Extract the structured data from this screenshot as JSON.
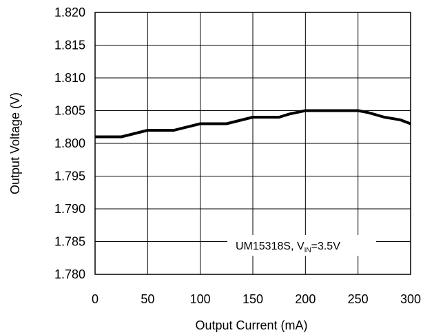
{
  "chart_data": {
    "type": "line",
    "xlabel": "Output Current (mA)",
    "ylabel": "Output Voltage (V)",
    "xlim": [
      0,
      300
    ],
    "ylim": [
      1.78,
      1.82
    ],
    "x_ticks": [
      "0",
      "50",
      "100",
      "150",
      "200",
      "250",
      "300"
    ],
    "y_ticks": [
      "1.780",
      "1.785",
      "1.790",
      "1.795",
      "1.800",
      "1.805",
      "1.810",
      "1.815",
      "1.820"
    ],
    "grid": true,
    "annotation": {
      "main": "UM15318S, V",
      "sub": "IN",
      "tail": "=3.5V"
    },
    "series": [
      {
        "x": [
          0,
          25,
          50,
          75,
          80,
          90,
          100,
          125,
          150,
          175,
          185,
          200,
          225,
          250,
          260,
          275,
          290,
          300
        ],
        "y": [
          1.801,
          1.801,
          1.802,
          1.802,
          1.8022,
          1.8026,
          1.803,
          1.803,
          1.804,
          1.804,
          1.8045,
          1.805,
          1.805,
          1.805,
          1.8047,
          1.804,
          1.8036,
          1.803
        ],
        "color": "#000000"
      }
    ]
  }
}
